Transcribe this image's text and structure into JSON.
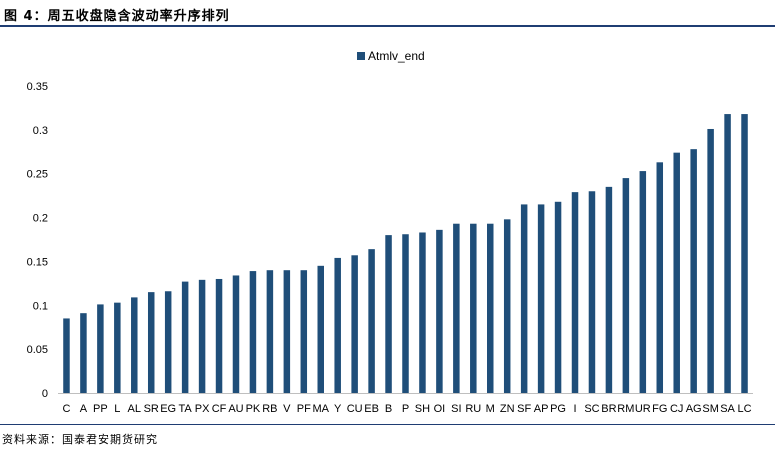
{
  "figure_title": "图 4：周五收盘隐含波动率升序排列",
  "source_note": "资料来源：国泰君安期货研究",
  "chart_data": {
    "type": "bar",
    "title": "",
    "xlabel": "",
    "ylabel": "",
    "ylim": [
      0,
      0.35
    ],
    "yticks": [
      "0",
      "0.05",
      "0.1",
      "0.15",
      "0.2",
      "0.25",
      "0.3",
      "0.35"
    ],
    "grid": false,
    "legend_position": "top-center",
    "bar_color": "#1f4e79",
    "categories": [
      "C",
      "A",
      "PP",
      "L",
      "AL",
      "SR",
      "EG",
      "TA",
      "PX",
      "CF",
      "AU",
      "PK",
      "RB",
      "V",
      "PF",
      "MA",
      "Y",
      "CU",
      "EB",
      "B",
      "P",
      "SH",
      "OI",
      "SI",
      "RU",
      "M",
      "ZN",
      "SF",
      "AP",
      "PG",
      "I",
      "SC",
      "BR",
      "RM",
      "UR",
      "FG",
      "CJ",
      "AG",
      "SM",
      "SA",
      "LC"
    ],
    "series": [
      {
        "name": "Atmlv_end",
        "values": [
          0.085,
          0.091,
          0.101,
          0.103,
          0.109,
          0.115,
          0.116,
          0.127,
          0.129,
          0.13,
          0.134,
          0.139,
          0.14,
          0.14,
          0.14,
          0.145,
          0.154,
          0.157,
          0.164,
          0.18,
          0.181,
          0.183,
          0.186,
          0.193,
          0.193,
          0.193,
          0.198,
          0.215,
          0.215,
          0.218,
          0.229,
          0.23,
          0.235,
          0.245,
          0.253,
          0.263,
          0.274,
          0.278,
          0.301,
          0.318,
          0.318
        ]
      }
    ]
  }
}
